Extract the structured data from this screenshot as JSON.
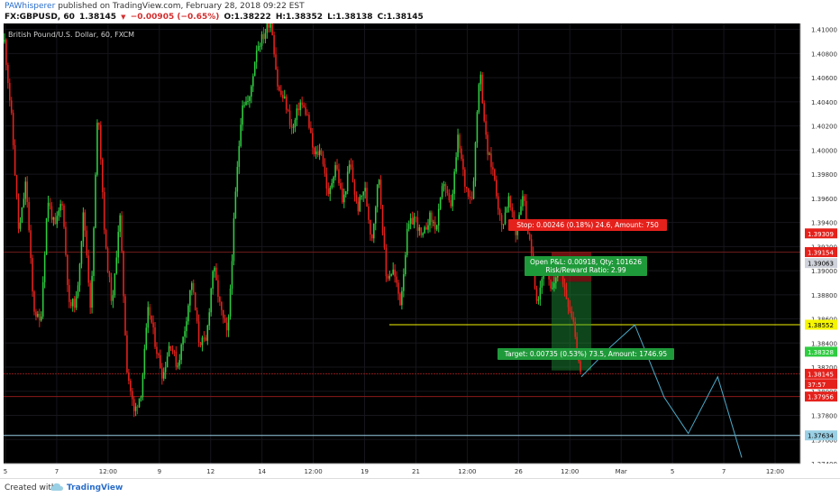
{
  "header": {
    "author": "PAWhisperer",
    "published": "published on TradingView.com, February 28, 2018 09:22 EST",
    "symbol": "FX:GBPUSD, 60",
    "last": "1.38145",
    "change_arrow": "▼",
    "change": "−0.00905 (−0.65%)",
    "open": "O:1.38222",
    "high": "H:1.38352",
    "low": "L:1.38138",
    "close": "C:1.38145"
  },
  "chart_data": {
    "type": "candlestick",
    "title": "British Pound/U.S. Dollar, 60, FXCM",
    "y_ticks": [
      "1.41000",
      "1.40800",
      "1.40600",
      "1.40400",
      "1.40200",
      "1.40000",
      "1.39800",
      "1.39600",
      "1.39400",
      "1.39200",
      "1.39000",
      "1.38800",
      "1.38600",
      "1.38400",
      "1.38200",
      "1.38000",
      "1.37800",
      "1.37600",
      "1.37400"
    ],
    "x_ticks": [
      "5",
      "7",
      "12:00",
      "9",
      "12",
      "14",
      "12:00",
      "19",
      "21",
      "12:00",
      "26",
      "12:00",
      "Mar",
      "5",
      "7",
      "12:00"
    ],
    "ylim": [
      1.374,
      1.4105
    ],
    "colors": {
      "up": "#2ecc40",
      "down": "#e5211c",
      "background": "#000000",
      "grid": "#16161c",
      "axis_text": "#c8c8c8"
    },
    "price_path": [
      1.409,
      1.4025,
      1.393,
      1.3975,
      1.387,
      1.3855,
      1.396,
      1.3935,
      1.396,
      1.387,
      1.3875,
      1.395,
      1.3865,
      1.404,
      1.392,
      1.387,
      1.395,
      1.382,
      1.3782,
      1.38,
      1.387,
      1.3838,
      1.3812,
      1.3842,
      1.382,
      1.385,
      1.3892,
      1.3842,
      1.384,
      1.3905,
      1.3868,
      1.3845,
      1.3955,
      1.404,
      1.404,
      1.4085,
      1.4095,
      1.411,
      1.405,
      1.404,
      1.4015,
      1.404,
      1.403,
      1.3995,
      1.4,
      1.396,
      1.399,
      1.3955,
      1.399,
      1.395,
      1.397,
      1.3925,
      1.398,
      1.3895,
      1.39,
      1.3873,
      1.3935,
      1.3945,
      1.3925,
      1.3945,
      1.3935,
      1.3975,
      1.395,
      1.401,
      1.397,
      1.396,
      1.407,
      1.4,
      1.398,
      1.3935,
      1.396,
      1.393,
      1.3965,
      1.392,
      1.3875,
      1.3905,
      1.388,
      1.3908,
      1.388,
      1.386,
      1.3814
    ],
    "annotations": {
      "stop_label": "Stop: 0.00246 (0.18%) 24.6, Amount: 750",
      "open_label_1": "Open P&L: 0.00918, Qty: 101626",
      "open_label_2": "Risk/Reward Ratio: 2.99",
      "target_label": "Target: 0.00735 (0.53%) 73.5, Amount: 1746.95",
      "yellow_level": 1.38552,
      "cyan_level": 1.37634,
      "red_level_1": 1.38145,
      "red_level_2": 1.37956,
      "stop_level": 1.39154,
      "entry_level": 1.38908,
      "target_level": 1.38173,
      "projection": [
        [
          1.3812,
          1.3837
        ],
        [
          1.3855,
          1.3795
        ],
        [
          1.3765,
          1.3812
        ],
        [
          1.3745,
          1.3745
        ]
      ]
    },
    "price_tags": [
      {
        "label": "1.39309",
        "value": 1.39309,
        "bg": "#e5211c",
        "fg": "#ffffff"
      },
      {
        "label": "1.39154",
        "value": 1.39154,
        "bg": "#e5211c",
        "fg": "#ffffff"
      },
      {
        "label": "1.39063",
        "value": 1.39063,
        "bg": "#cfd2da",
        "fg": "#000000"
      },
      {
        "label": "1.38552",
        "value": 1.38552,
        "bg": "#f5f500",
        "fg": "#000000"
      },
      {
        "label": "1.38328",
        "value": 1.38328,
        "bg": "#2ecc40",
        "fg": "#ffffff"
      },
      {
        "label": "1.38145",
        "value": 1.38145,
        "bg": "#e5211c",
        "fg": "#ffffff"
      },
      {
        "label": "37:57",
        "value": 1.3806,
        "bg": "#e5211c",
        "fg": "#ffffff"
      },
      {
        "label": "1.37956",
        "value": 1.37956,
        "bg": "#e5211c",
        "fg": "#ffffff"
      },
      {
        "label": "1.37634",
        "value": 1.37634,
        "bg": "#9ad0e5",
        "fg": "#000000"
      }
    ]
  },
  "footer": {
    "created": "Created with",
    "brand": "TradingView"
  }
}
